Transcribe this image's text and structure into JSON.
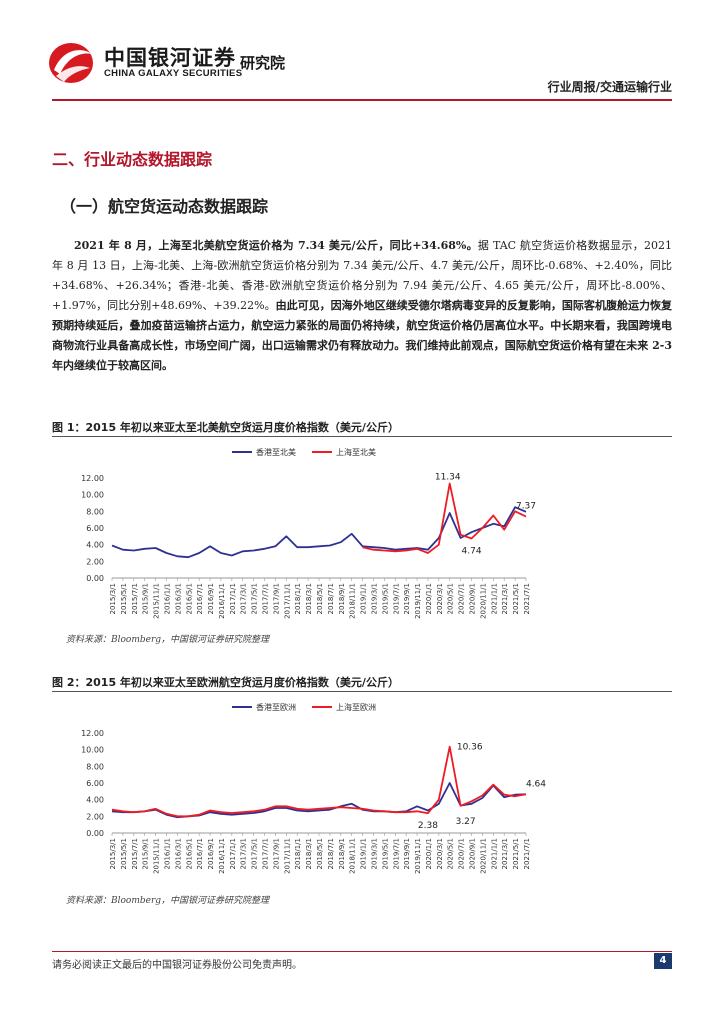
{
  "header": {
    "logo_cn": "中国银河证券",
    "logo_en": "CHINA GALAXY SECURITIES",
    "logo_inst": "研究院",
    "report_type": "行业周报/交通运输行业"
  },
  "section": {
    "title": "二、行业动态数据跟踪",
    "subsection": "（一）航空货运动态数据跟踪",
    "paragraph": {
      "bold_lead": "2021 年 8 月，上海至北美航空货运价格为 7.34 美元/公斤，同比+34.68%。",
      "body": "据 TAC 航空货运价格数据显示，2021 年 8 月 13 日，上海-北美、上海-欧洲航空货运价格分别为 7.34 美元/公斤、4.7 美元/公斤，周环比-0.68%、+2.40%，同比+34.68%、+26.34%；香港-北美、香港-欧洲航空货运价格分别为 7.94 美元/公斤、4.65 美元/公斤，周环比-8.00%、+1.97%，同比分别+48.69%、+39.22%。",
      "bold_tail": "由此可见，因海外地区继续受德尔塔病毒变异的反复影响，国际客机腹舱运力恢复预期持续延后，叠加疫苗运输挤占运力，航空运力紧张的局面仍将持续，航空货运价格仍居高位水平。中长期来看，我国跨境电商物流行业具备高成长性，市场空间广阔，出口运输需求仍有释放动力。我们维持此前观点，国际航空货运价格有望在未来 2-3 年内继续位于较高区间。"
    }
  },
  "figures": [
    {
      "title": "图 1：2015 年初以来亚太至北美航空货运月度价格指数（美元/公斤）",
      "source": "资料来源：Bloomberg，中国银河证券研究院整理"
    },
    {
      "title": "图 2：2015 年初以来亚太至欧洲航空货运月度价格指数（美元/公斤）",
      "source": "资料来源：Bloomberg，中国银河证券研究院整理"
    }
  ],
  "chart_data": [
    {
      "type": "line",
      "title": "",
      "xlabel": "",
      "ylabel": "",
      "ylim": [
        0,
        12
      ],
      "yticks": [
        "0.00",
        "2.00",
        "4.00",
        "6.00",
        "8.00",
        "10.00",
        "12.00"
      ],
      "x": [
        "2015/3/1",
        "2015/5/1",
        "2015/7/1",
        "2015/9/1",
        "2015/11/1",
        "2016/1/1",
        "2016/3/1",
        "2016/5/1",
        "2016/7/1",
        "2016/9/1",
        "2016/11/1",
        "2017/1/1",
        "2017/3/1",
        "2017/5/1",
        "2017/7/1",
        "2017/9/1",
        "2017/11/1",
        "2018/1/1",
        "2018/3/1",
        "2018/5/1",
        "2018/7/1",
        "2018/9/1",
        "2018/11/1",
        "2019/1/1",
        "2019/3/1",
        "2019/5/1",
        "2019/7/1",
        "2019/9/1",
        "2019/11/1",
        "2020/1/1",
        "2020/3/1",
        "2020/5/1",
        "2020/7/1",
        "2020/9/1",
        "2020/11/1",
        "2021/1/1",
        "2021/3/1",
        "2021/5/1",
        "2021/7/1"
      ],
      "legend_position": "top",
      "series": [
        {
          "name": "香港至北美",
          "color": "#2e3192",
          "values": [
            3.9,
            3.4,
            3.3,
            3.5,
            3.6,
            3.0,
            2.6,
            2.5,
            3.0,
            3.8,
            3.0,
            2.7,
            3.2,
            3.3,
            3.5,
            3.8,
            5.0,
            3.7,
            3.7,
            3.8,
            3.9,
            4.3,
            5.3,
            3.8,
            3.7,
            3.6,
            3.4,
            3.5,
            3.6,
            3.4,
            4.8,
            7.8,
            4.8,
            5.5,
            6.0,
            6.5,
            6.2,
            8.5,
            7.94
          ]
        },
        {
          "name": "上海至北美",
          "color": "#ed1c24",
          "values": [
            null,
            null,
            null,
            null,
            null,
            null,
            null,
            null,
            null,
            null,
            null,
            null,
            null,
            null,
            null,
            null,
            null,
            null,
            null,
            null,
            null,
            null,
            null,
            3.7,
            3.4,
            3.3,
            3.2,
            3.3,
            3.5,
            3.0,
            4.0,
            11.34,
            5.2,
            4.74,
            6.0,
            7.5,
            5.8,
            8.0,
            7.37
          ]
        }
      ],
      "annotations": [
        "11.34",
        "4.74",
        "7.37"
      ]
    },
    {
      "type": "line",
      "title": "",
      "xlabel": "",
      "ylabel": "",
      "ylim": [
        0,
        12
      ],
      "yticks": [
        "0.00",
        "2.00",
        "4.00",
        "6.00",
        "8.00",
        "10.00",
        "12.00"
      ],
      "x": [
        "2015/3/1",
        "2015/5/1",
        "2015/7/1",
        "2015/9/1",
        "2015/11/1",
        "2016/1/1",
        "2016/3/1",
        "2016/5/1",
        "2016/7/1",
        "2016/9/1",
        "2016/11/1",
        "2017/1/1",
        "2017/3/1",
        "2017/5/1",
        "2017/7/1",
        "2017/9/1",
        "2017/11/1",
        "2018/1/1",
        "2018/3/1",
        "2018/5/1",
        "2018/7/1",
        "2018/9/1",
        "2018/11/1",
        "2019/1/1",
        "2019/3/1",
        "2019/5/1",
        "2019/7/1",
        "2019/9/1",
        "2019/11/1",
        "2020/1/1",
        "2020/3/1",
        "2020/5/1",
        "2020/7/1",
        "2020/9/1",
        "2020/11/1",
        "2021/1/1",
        "2021/3/1",
        "2021/5/1",
        "2021/7/1"
      ],
      "legend_position": "top",
      "series": [
        {
          "name": "香港至欧洲",
          "color": "#2e3192",
          "values": [
            2.6,
            2.5,
            2.5,
            2.6,
            2.8,
            2.2,
            1.9,
            2.0,
            2.1,
            2.5,
            2.3,
            2.2,
            2.3,
            2.4,
            2.6,
            3.0,
            3.0,
            2.7,
            2.6,
            2.7,
            2.8,
            3.2,
            3.5,
            2.8,
            2.6,
            2.6,
            2.5,
            2.6,
            3.2,
            2.7,
            3.5,
            6.0,
            3.3,
            3.5,
            4.2,
            5.7,
            4.3,
            4.6,
            4.65
          ]
        },
        {
          "name": "上海至欧洲",
          "color": "#ed1c24",
          "values": [
            2.8,
            2.6,
            2.5,
            2.6,
            2.9,
            2.3,
            2.0,
            2.0,
            2.2,
            2.7,
            2.5,
            2.4,
            2.5,
            2.6,
            2.8,
            3.2,
            3.2,
            2.9,
            2.8,
            2.9,
            3.0,
            3.1,
            3.0,
            2.9,
            2.7,
            2.6,
            2.5,
            2.5,
            2.6,
            2.38,
            4.0,
            10.36,
            3.27,
            3.8,
            4.5,
            5.8,
            4.6,
            4.4,
            4.64
          ]
        }
      ],
      "annotations": [
        "10.36",
        "2.38",
        "3.27",
        "4.64"
      ]
    }
  ],
  "footer": {
    "disclaimer": "请务必阅读正文最后的中国银河证券股份公司免责声明。",
    "page_number": "4"
  }
}
